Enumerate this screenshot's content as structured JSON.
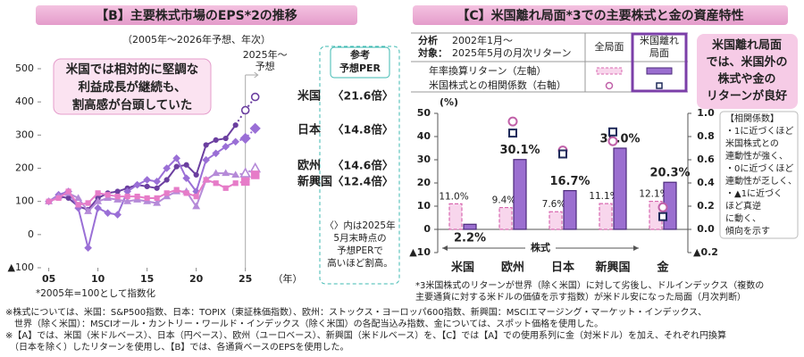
{
  "chart_data": [
    {
      "type": "line",
      "title": "【B】主要株式市場のEPS*2の推移",
      "subtitle": "（2005年～2026年予想、年次）",
      "x": [
        2005,
        2006,
        2007,
        2008,
        2009,
        2010,
        2011,
        2012,
        2013,
        2014,
        2015,
        2016,
        2017,
        2018,
        2019,
        2020,
        2021,
        2022,
        2023,
        2024,
        2025,
        2026
      ],
      "xlim": [
        2004.4,
        2027.3
      ],
      "xticks": [
        {
          "value": 2005,
          "label": "05"
        },
        {
          "value": 2010,
          "label": "10"
        },
        {
          "value": 2015,
          "label": "15"
        },
        {
          "value": 2020,
          "label": "20"
        },
        {
          "value": 2025,
          "label": "25"
        }
      ],
      "x_unit": "（年）",
      "ylim": [
        -100,
        500
      ],
      "yticks": [
        {
          "value": -100,
          "label": "▲100"
        },
        0,
        100,
        200,
        300,
        400,
        500
      ],
      "forecast_start": 2025,
      "forecast_label": [
        "2025年～",
        "予想"
      ],
      "annotation": [
        "米国では相対的に堅調な",
        "利益成長が継続も、",
        "割高感が台頭していた"
      ],
      "per_header": [
        "参考",
        "予想PER"
      ],
      "per_note": [
        "〈〉内は2025年",
        "5月末時点の",
        "予想PERで",
        "高いほど割高。"
      ],
      "footnote": "*2005年=100として指数化",
      "series": [
        {
          "name": "米国",
          "per": "〈21.6倍〉",
          "color": "#6b3fa0",
          "marker": "circle",
          "values": [
            100,
            115,
            110,
            85,
            75,
            110,
            125,
            130,
            140,
            150,
            145,
            140,
            165,
            205,
            210,
            180,
            270,
            285,
            290,
            330,
            375,
            415
          ]
        },
        {
          "name": "日本",
          "per": "〈14.8倍〉",
          "color": "#9a6fd6",
          "marker": "diamond",
          "values": [
            100,
            120,
            130,
            80,
            -40,
            80,
            65,
            60,
            130,
            150,
            165,
            160,
            200,
            230,
            170,
            130,
            225,
            245,
            265,
            280,
            290,
            320
          ]
        },
        {
          "name": "欧州",
          "per": "〈14.6倍〉",
          "color": "#b58ad8",
          "marker": "triangle",
          "values": [
            100,
            115,
            125,
            110,
            70,
            100,
            110,
            105,
            100,
            105,
            100,
            95,
            115,
            130,
            130,
            85,
            165,
            185,
            185,
            180,
            185,
            200
          ]
        },
        {
          "name": "新興国",
          "per": "〈12.4倍〉",
          "color": "#e67cc8",
          "marker": "square",
          "values": [
            100,
            110,
            130,
            90,
            95,
            125,
            120,
            115,
            115,
            115,
            110,
            110,
            125,
            135,
            125,
            115,
            165,
            155,
            140,
            155,
            160,
            180
          ]
        }
      ]
    },
    {
      "type": "bar",
      "title": "【C】米国離れ局面*3での主要株式と金の資産特性",
      "legend": {
        "heading": [
          "分析",
          "対象："
        ],
        "period": [
          "2002年1月～",
          "2025年5月の月次リターン"
        ],
        "columns": [
          [
            "全局面"
          ],
          [
            "米国離れ",
            "局面"
          ]
        ],
        "rows": [
          "年率換算リターン（左軸）",
          "米国株式との相関係数（右軸）"
        ]
      },
      "y_unit": "(%)",
      "categories": [
        "米国",
        "欧州",
        "日本",
        "新興国",
        "金"
      ],
      "group_label": "株式",
      "ylim": [
        -10,
        50
      ],
      "yticks": [
        {
          "value": -10,
          "label": "▲10"
        },
        0,
        10,
        20,
        30,
        40,
        50
      ],
      "y2lim": [
        -0.2,
        1.0
      ],
      "y2ticks": [
        {
          "value": -0.2,
          "label": "▲0.2"
        },
        {
          "value": 0,
          "label": "0.0"
        },
        0.2,
        0.4,
        0.6,
        0.8,
        {
          "value": 1,
          "label": "1.0"
        }
      ],
      "series": [
        {
          "style": "dashed",
          "color": "#f8d6ec",
          "edge": "#d868b0",
          "values": [
            11.0,
            9.4,
            7.6,
            11.1,
            12.1
          ],
          "value_labels": [
            "11.0%",
            "9.4%",
            "7.6%",
            "11.1%",
            "12.1%"
          ]
        },
        {
          "style": "solid",
          "color": "#9b6fd0",
          "edge": "#4b2a7a",
          "values": [
            2.2,
            30.1,
            16.7,
            35.0,
            20.3
          ],
          "value_labels": [
            "2.2%",
            "30.1%",
            "16.7%",
            "35.0%",
            "20.3%"
          ]
        },
        {
          "axis": "y2",
          "marker": "circle",
          "color": "#c060a8",
          "values": [
            null,
            0.93,
            0.68,
            0.76,
            0.19
          ]
        },
        {
          "axis": "y2",
          "marker": "square",
          "color": "#1f2a5a",
          "values": [
            null,
            0.83,
            0.65,
            0.84,
            0.11
          ]
        }
      ],
      "callout": [
        "米国離れ局面",
        "では、米国外の",
        "株式や金の",
        "リターンが良好"
      ],
      "corr_note": [
        "【相関係数】",
        "・1に近づくほど",
        "米国株式との",
        "連動性が強く、",
        "・0に近づくほど",
        "連動性が乏しく、",
        "・▲1に近づく",
        "ほど真逆",
        "に動く、",
        "傾向を示す"
      ],
      "footnote": [
        "*3米国株式のリターンが世界（除く米国）に対して劣後し、ドルインデックス（複数の",
        "主要通貨に対する米ドルの価値を示す指数）が米ドル安になった局面（月次判断）"
      ]
    }
  ],
  "notes": [
    "※株式については、米国：S&P500指数、日本：TOPIX（東証株価指数）、欧州：ストックス・ヨーロッパ600指数、新興国：MSCIエマージング・マーケット・インデックス、",
    "　世界（除く米国）：MSCIオール・カントリー・ワールド・インデックス（除く米国）の各配当込み指数、金については、スポット価格を使用した。",
    "※【A】では、米国（米ドルベース）、日本（円ベース）、欧州（ユーロベース）、新興国（米ドルベース）を、【C】では【A】での使用系列に金（対米ドル）を加え、それぞれ円換算",
    "　（日本を除く）したリターンを使用し、【B】では、各通貨ベースのEPSを使用した。"
  ]
}
